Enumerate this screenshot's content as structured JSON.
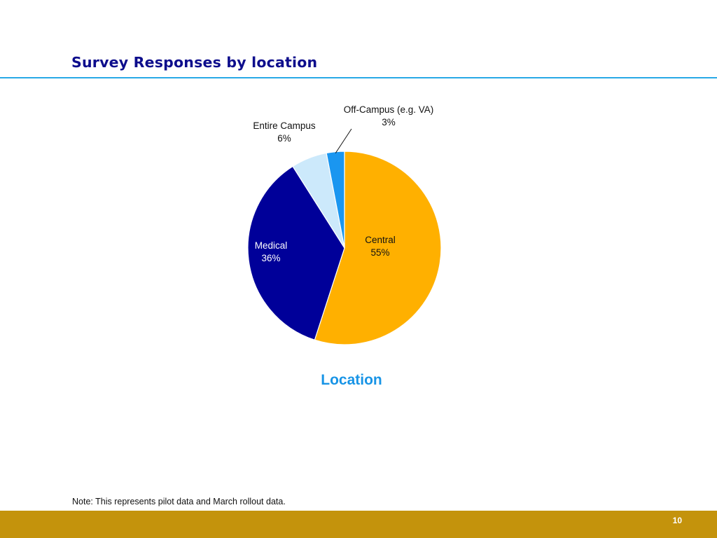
{
  "slide": {
    "title": "Survey Responses by location",
    "note": "Note: This represents pilot data and March rollout data.",
    "page_number": "10"
  },
  "colors": {
    "title": "#0d0d8c",
    "rule": "#29a9e6",
    "footer_bar": "#c4930c",
    "caption": "#1894e6"
  },
  "chart_data": {
    "type": "pie",
    "caption": "Location",
    "slices": [
      {
        "label": "Central",
        "value": 55,
        "percent_label": "55%",
        "color": "#ffb000",
        "text_color": "#111111"
      },
      {
        "label": "Medical",
        "value": 36,
        "percent_label": "36%",
        "color": "#000099",
        "text_color": "#ffffff"
      },
      {
        "label": "Entire Campus",
        "value": 6,
        "percent_label": "6%",
        "color": "#cce9fb",
        "text_color": "#111111"
      },
      {
        "label": "Off-Campus (e.g. VA)",
        "value": 3,
        "percent_label": "3%",
        "color": "#1a96f0",
        "text_color": "#111111"
      }
    ],
    "start_angle": "12 o'clock",
    "direction": "clockwise",
    "legend": "none (data labels)"
  }
}
